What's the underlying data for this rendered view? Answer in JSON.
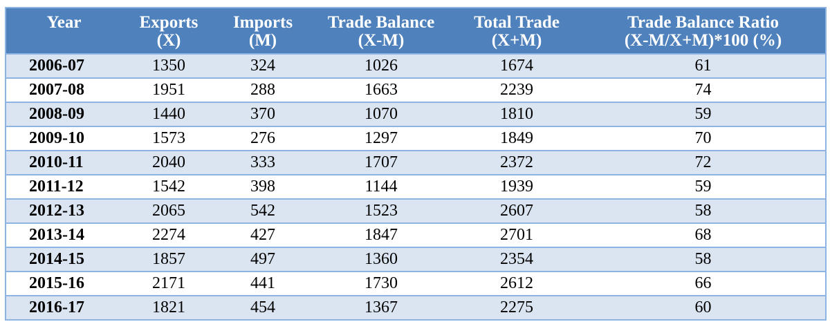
{
  "table": {
    "headers": [
      {
        "l1": "Year",
        "l2": ""
      },
      {
        "l1": "Exports",
        "l2": "(X)"
      },
      {
        "l1": "Imports",
        "l2": "(M)"
      },
      {
        "l1": "Trade Balance",
        "l2": "(X-M)"
      },
      {
        "l1": "Total Trade",
        "l2": "(X+M)"
      },
      {
        "l1": "Trade Balance Ratio",
        "l2": "(X-M/X+M)*100 (%)"
      }
    ],
    "rows": [
      [
        "2006-07",
        "1350",
        "324",
        "1026",
        "1674",
        "61"
      ],
      [
        "2007-08",
        "1951",
        "288",
        "1663",
        "2239",
        "74"
      ],
      [
        "2008-09",
        "1440",
        "370",
        "1070",
        "1810",
        "59"
      ],
      [
        "2009-10",
        "1573",
        "276",
        "1297",
        "1849",
        "70"
      ],
      [
        "2010-11",
        "2040",
        "333",
        "1707",
        "2372",
        "72"
      ],
      [
        "2011-12",
        "1542",
        "398",
        "1144",
        "1939",
        "59"
      ],
      [
        "2012-13",
        "2065",
        "542",
        "1523",
        "2607",
        "58"
      ],
      [
        "2013-14",
        "2274",
        "427",
        "1847",
        "2701",
        "68"
      ],
      [
        "2014-15",
        "1857",
        "497",
        "1360",
        "2354",
        "58"
      ],
      [
        "2015-16",
        "2171",
        "441",
        "1730",
        "2612",
        "66"
      ],
      [
        "2016-17",
        "1821",
        "454",
        "1367",
        "2275",
        "60"
      ]
    ]
  },
  "colors": {
    "header_bg": "#4f81bd",
    "row_band": "#dbe5f1",
    "border": "#8db3e2"
  }
}
